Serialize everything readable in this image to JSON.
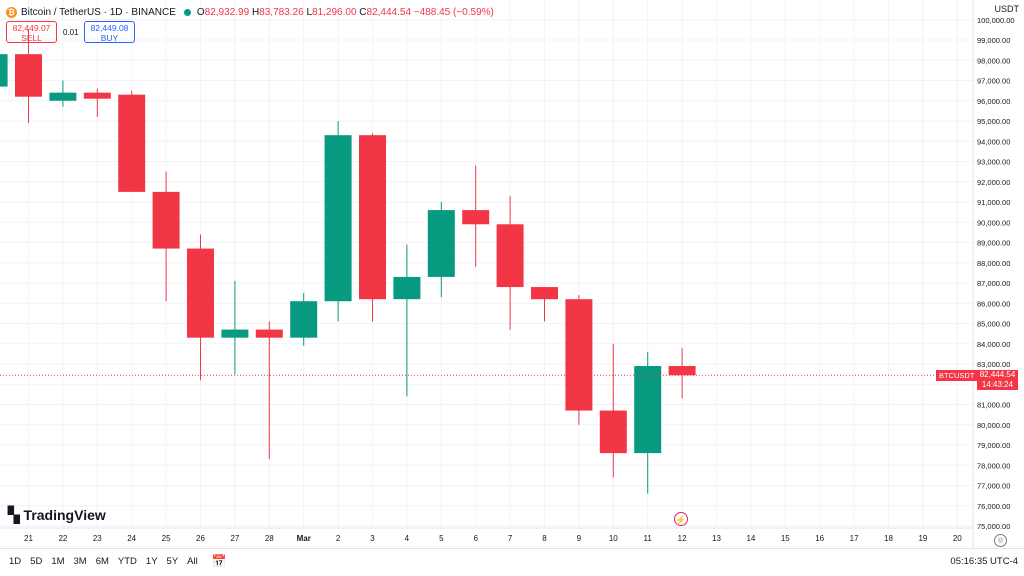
{
  "header": {
    "symbol_title": "Bitcoin / TetherUS · 1D · BINANCE",
    "open_label": "O",
    "open": "82,932.99",
    "high_label": "H",
    "high": "83,783.26",
    "low_label": "L",
    "low": "81,296.00",
    "close_label": "C",
    "close": "82,444.54",
    "change": "−488.45 (−0.59%)",
    "currency": "USDT"
  },
  "trade": {
    "sell_price": "82,449.07",
    "sell_label": "SELL",
    "spread": "0.01",
    "buy_price": "82,449.08",
    "buy_label": "BUY"
  },
  "price_tag": {
    "symbol": "BTCUSDT",
    "price": "82,444.54",
    "countdown": "14:43:24"
  },
  "logo": "TradingView",
  "bottom_bar": {
    "ranges": [
      "1D",
      "5D",
      "1M",
      "3M",
      "6M",
      "YTD",
      "1Y",
      "5Y",
      "All"
    ],
    "clock": "05:16:35 UTC-4"
  },
  "colors": {
    "up": "#089981",
    "down": "#f23645",
    "grid": "#f0f3fa",
    "axis_text": "#131722"
  },
  "icons": {
    "goto_date": "calendar-icon",
    "reset": "reset-icon",
    "alert": "lightning-icon"
  },
  "chart_data": {
    "type": "candlestick",
    "xlabels": [
      "21",
      "22",
      "23",
      "24",
      "25",
      "26",
      "27",
      "28",
      "Mar",
      "2",
      "3",
      "4",
      "5",
      "6",
      "7",
      "8",
      "9",
      "10",
      "11",
      "12",
      "13",
      "14",
      "15",
      "16",
      "17",
      "18",
      "19",
      "20"
    ],
    "ylim": [
      75000,
      100000
    ],
    "yticks": [
      "75,000.00",
      "76,000.00",
      "77,000.00",
      "78,000.00",
      "79,000.00",
      "80,000.00",
      "81,000.00",
      "82,000.00",
      "83,000.00",
      "84,000.00",
      "85,000.00",
      "86,000.00",
      "87,000.00",
      "88,000.00",
      "89,000.00",
      "90,000.00",
      "91,000.00",
      "92,000.00",
      "93,000.00",
      "94,000.00",
      "95,000.00",
      "96,000.00",
      "97,000.00",
      "98,000.00",
      "99,000.00",
      "100,000.00"
    ],
    "candles": [
      {
        "date": "20",
        "open": 96700,
        "high": 98900,
        "low": 96200,
        "close": 98300
      },
      {
        "date": "21",
        "open": 98300,
        "high": 99500,
        "low": 94900,
        "close": 96200
      },
      {
        "date": "22",
        "open": 96000,
        "high": 97000,
        "low": 95700,
        "close": 96400
      },
      {
        "date": "23",
        "open": 96400,
        "high": 96600,
        "low": 95200,
        "close": 96100
      },
      {
        "date": "24",
        "open": 96300,
        "high": 96500,
        "low": 91500,
        "close": 91500
      },
      {
        "date": "25",
        "open": 91500,
        "high": 92500,
        "low": 86100,
        "close": 88700
      },
      {
        "date": "26",
        "open": 88700,
        "high": 89400,
        "low": 82200,
        "close": 84300
      },
      {
        "date": "27",
        "open": 84300,
        "high": 87100,
        "low": 82500,
        "close": 84700
      },
      {
        "date": "28",
        "open": 84700,
        "high": 85100,
        "low": 78300,
        "close": 84300
      },
      {
        "date": "Mar",
        "open": 84300,
        "high": 86500,
        "low": 83900,
        "close": 86100
      },
      {
        "date": "2",
        "open": 86100,
        "high": 95000,
        "low": 85100,
        "close": 94300
      },
      {
        "date": "3",
        "open": 94300,
        "high": 94400,
        "low": 85100,
        "close": 86200
      },
      {
        "date": "4",
        "open": 86200,
        "high": 88900,
        "low": 81400,
        "close": 87300
      },
      {
        "date": "5",
        "open": 87300,
        "high": 91000,
        "low": 86300,
        "close": 90600
      },
      {
        "date": "6",
        "open": 90600,
        "high": 92800,
        "low": 87800,
        "close": 89900
      },
      {
        "date": "7",
        "open": 89900,
        "high": 91300,
        "low": 84700,
        "close": 86800
      },
      {
        "date": "8",
        "open": 86800,
        "high": 86800,
        "low": 85100,
        "close": 86200
      },
      {
        "date": "9",
        "open": 86200,
        "high": 86400,
        "low": 80000,
        "close": 80700
      },
      {
        "date": "10",
        "open": 80700,
        "high": 84000,
        "low": 77400,
        "close": 78600
      },
      {
        "date": "11",
        "open": 78600,
        "high": 83600,
        "low": 76600,
        "close": 82900
      },
      {
        "date": "12",
        "open": 82900,
        "high": 83800,
        "low": 81300,
        "close": 82445
      }
    ],
    "last_price": 82444.54
  }
}
